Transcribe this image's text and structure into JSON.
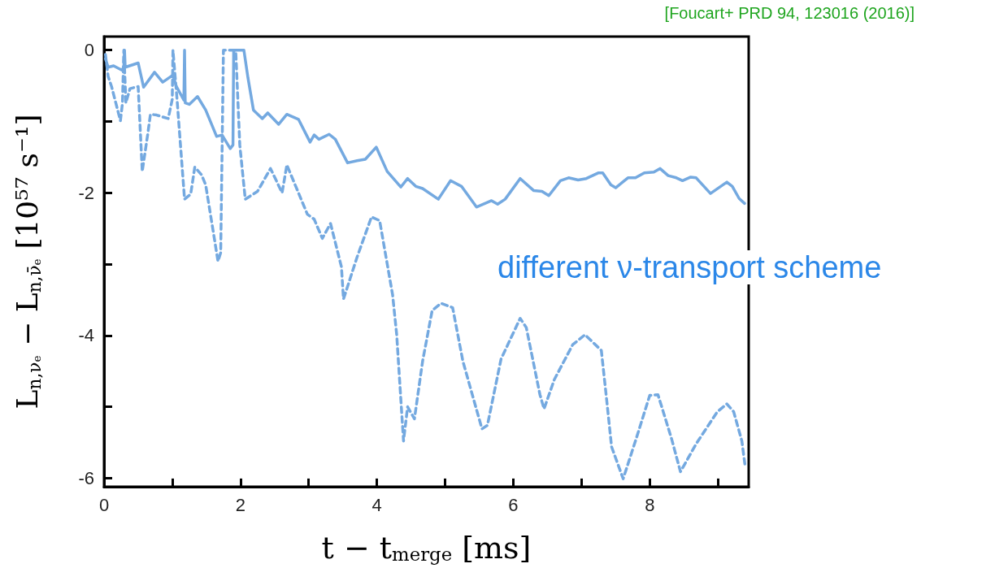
{
  "chart_data": {
    "type": "line",
    "xlabel": "t − t$_{merge}$ [ms]",
    "ylabel": "L$_{n,νₑ}$ − L$_{n,ν̄ₑ}$ [10⁵⁷ s⁻¹]",
    "annotations": [
      "[Foucart+ PRD 94, 123016 (2016)]",
      "different ν-transport scheme"
    ],
    "xlim": [
      0,
      9.45
    ],
    "ylim": [
      -6.12,
      0.19
    ],
    "xticks": [
      0,
      {
        "value": 1,
        "label": null
      },
      2,
      {
        "value": 3,
        "label": null
      },
      4,
      {
        "value": 5,
        "label": null
      },
      6,
      {
        "value": 7,
        "label": null
      },
      8,
      {
        "value": 9,
        "label": null
      }
    ],
    "yticks": [
      -6,
      {
        "value": -5,
        "label": null
      },
      -4,
      {
        "value": -3,
        "label": null
      },
      -2,
      {
        "value": -1,
        "label": null
      },
      0
    ],
    "grid": false,
    "marker": "none",
    "series": [
      {
        "color": "#74a9e0",
        "line_style": "solid",
        "x": [
          0.02,
          0.06,
          0.14,
          0.26,
          0.29,
          0.3,
          0.31,
          0.5,
          0.58,
          0.74,
          0.86,
          1.01,
          1.06,
          1.17,
          1.18,
          1.19,
          1.25,
          1.37,
          1.49,
          1.65,
          1.73,
          1.85,
          1.89,
          1.9,
          2.05,
          2.11,
          2.19,
          2.32,
          2.4,
          2.56,
          2.68,
          2.85,
          3.02,
          3.08,
          3.15,
          3.3,
          3.39,
          3.57,
          3.71,
          3.83,
          3.99,
          4.15,
          4.35,
          4.45,
          4.57,
          4.67,
          4.9,
          5.08,
          5.24,
          5.46,
          5.68,
          5.77,
          5.88,
          6.1,
          6.3,
          6.42,
          6.52,
          6.69,
          6.81,
          6.95,
          7.07,
          7.25,
          7.31,
          7.43,
          7.5,
          7.68,
          7.79,
          7.92,
          8.06,
          8.15,
          8.27,
          8.39,
          8.48,
          8.6,
          8.68,
          8.89,
          9.13,
          9.21,
          9.31,
          9.39
        ],
        "values": [
          -0.12,
          -0.24,
          -0.22,
          -0.28,
          -0.24,
          0,
          -0.24,
          -0.18,
          -0.52,
          -0.31,
          -0.45,
          -0.35,
          -0.51,
          -0.7,
          0,
          -0.74,
          -0.76,
          -0.65,
          -0.84,
          -1.21,
          -1.19,
          -1.38,
          -1.33,
          0,
          0,
          -0.39,
          -0.84,
          -0.96,
          -0.88,
          -1.04,
          -0.9,
          -0.97,
          -1.29,
          -1.19,
          -1.25,
          -1.18,
          -1.25,
          -1.58,
          -1.55,
          -1.53,
          -1.36,
          -1.7,
          -1.92,
          -1.8,
          -1.91,
          -1.94,
          -2.09,
          -1.83,
          -1.91,
          -2.2,
          -2.11,
          -2.16,
          -2.09,
          -1.8,
          -1.97,
          -1.98,
          -2.04,
          -1.83,
          -1.79,
          -1.82,
          -1.8,
          -1.72,
          -1.72,
          -1.89,
          -1.93,
          -1.79,
          -1.79,
          -1.72,
          -1.71,
          -1.66,
          -1.76,
          -1.79,
          -1.83,
          -1.78,
          -1.79,
          -2.01,
          -1.85,
          -1.91,
          -2.08,
          -2.15
        ]
      },
      {
        "color": "#74a9e0",
        "line_style": "dashed",
        "x": [
          0.02,
          0.06,
          0.11,
          0.24,
          0.27,
          0.29,
          0.32,
          0.38,
          0.5,
          0.56,
          0.64,
          0.68,
          0.77,
          0.94,
          1.0,
          1.01,
          1.07,
          1.18,
          1.27,
          1.33,
          1.43,
          1.49,
          1.61,
          1.67,
          1.71,
          1.75,
          1.93,
          1.99,
          2.07,
          2.25,
          2.44,
          2.61,
          2.68,
          2.98,
          3.08,
          3.2,
          3.32,
          3.48,
          3.51,
          3.71,
          3.92,
          4.04,
          4.23,
          4.29,
          4.39,
          4.45,
          4.55,
          4.67,
          4.81,
          4.94,
          5.11,
          5.26,
          5.54,
          5.62,
          5.82,
          6.1,
          6.19,
          6.39,
          6.45,
          6.6,
          6.87,
          7.05,
          7.29,
          7.37,
          7.44,
          7.61,
          7.8,
          8.0,
          8.12,
          8.32,
          8.45,
          8.68,
          8.99,
          9.13,
          9.23,
          9.35,
          9.4
        ],
        "values": [
          -0.06,
          -0.37,
          -0.51,
          -0.99,
          -0.74,
          0,
          -0.74,
          -0.54,
          -0.51,
          -1.7,
          -1.18,
          -0.9,
          -0.91,
          -0.96,
          -0.69,
          0,
          -0.69,
          -2.09,
          -2.02,
          -1.64,
          -1.75,
          -1.89,
          -2.6,
          -2.96,
          -2.84,
          0,
          0,
          -1.33,
          -2.09,
          -1.98,
          -1.66,
          -2.0,
          -1.61,
          -2.3,
          -2.37,
          -2.64,
          -2.43,
          -3.04,
          -3.49,
          -2.9,
          -2.34,
          -2.39,
          -3.43,
          -3.99,
          -5.48,
          -5.0,
          -5.17,
          -4.36,
          -3.65,
          -3.55,
          -3.61,
          -4.36,
          -5.31,
          -5.26,
          -4.33,
          -3.76,
          -3.89,
          -4.83,
          -5.03,
          -4.62,
          -4.13,
          -3.99,
          -4.21,
          -4.92,
          -5.56,
          -6.01,
          -5.45,
          -4.84,
          -4.83,
          -5.45,
          -5.91,
          -5.52,
          -5.07,
          -4.96,
          -5.07,
          -5.48,
          -5.85
        ]
      }
    ]
  }
}
